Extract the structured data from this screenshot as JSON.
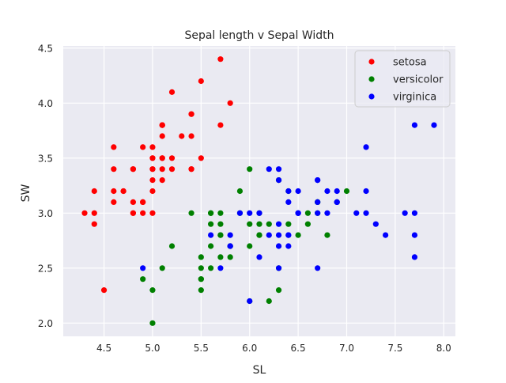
{
  "chart_data": {
    "type": "scatter",
    "title": "Sepal length v Sepal Width",
    "xlabel": "SL",
    "ylabel": "SW",
    "xlim": [
      4.08,
      8.12
    ],
    "ylim": [
      1.88,
      4.52
    ],
    "xticks": [
      4.5,
      5.0,
      5.5,
      6.0,
      6.5,
      7.0,
      7.5,
      8.0
    ],
    "xtick_labels": [
      "4.5",
      "5.0",
      "5.5",
      "6.0",
      "6.5",
      "7.0",
      "7.5",
      "8.0"
    ],
    "yticks": [
      2.0,
      2.5,
      3.0,
      3.5,
      4.0,
      4.5
    ],
    "ytick_labels": [
      "2.0",
      "2.5",
      "3.0",
      "3.5",
      "4.0",
      "4.5"
    ],
    "grid": true,
    "legend_position": "top-right",
    "series": [
      {
        "name": "setosa",
        "color": "#ff0000",
        "points": [
          [
            5.1,
            3.5
          ],
          [
            4.9,
            3.0
          ],
          [
            4.7,
            3.2
          ],
          [
            4.6,
            3.1
          ],
          [
            5.0,
            3.6
          ],
          [
            5.4,
            3.9
          ],
          [
            4.6,
            3.4
          ],
          [
            5.0,
            3.4
          ],
          [
            4.4,
            2.9
          ],
          [
            4.9,
            3.1
          ],
          [
            5.4,
            3.7
          ],
          [
            4.8,
            3.4
          ],
          [
            4.8,
            3.0
          ],
          [
            4.3,
            3.0
          ],
          [
            5.8,
            4.0
          ],
          [
            5.7,
            4.4
          ],
          [
            5.4,
            3.9
          ],
          [
            5.1,
            3.5
          ],
          [
            5.7,
            3.8
          ],
          [
            5.1,
            3.8
          ],
          [
            5.4,
            3.4
          ],
          [
            5.1,
            3.7
          ],
          [
            4.6,
            3.6
          ],
          [
            5.1,
            3.3
          ],
          [
            4.8,
            3.4
          ],
          [
            5.0,
            3.0
          ],
          [
            5.0,
            3.4
          ],
          [
            5.2,
            3.5
          ],
          [
            5.2,
            3.4
          ],
          [
            4.7,
            3.2
          ],
          [
            4.8,
            3.1
          ],
          [
            5.4,
            3.4
          ],
          [
            5.2,
            4.1
          ],
          [
            5.5,
            4.2
          ],
          [
            4.9,
            3.1
          ],
          [
            5.0,
            3.2
          ],
          [
            5.5,
            3.5
          ],
          [
            4.9,
            3.6
          ],
          [
            4.4,
            3.0
          ],
          [
            5.1,
            3.4
          ],
          [
            5.0,
            3.5
          ],
          [
            4.5,
            2.3
          ],
          [
            4.4,
            3.2
          ],
          [
            5.0,
            3.5
          ],
          [
            5.1,
            3.8
          ],
          [
            4.8,
            3.0
          ],
          [
            5.1,
            3.8
          ],
          [
            4.6,
            3.2
          ],
          [
            5.3,
            3.7
          ],
          [
            5.0,
            3.3
          ]
        ]
      },
      {
        "name": "versicolor",
        "color": "#008000",
        "points": [
          [
            7.0,
            3.2
          ],
          [
            6.4,
            3.2
          ],
          [
            6.9,
            3.1
          ],
          [
            5.5,
            2.3
          ],
          [
            6.5,
            2.8
          ],
          [
            5.7,
            2.8
          ],
          [
            6.3,
            3.3
          ],
          [
            4.9,
            2.4
          ],
          [
            6.6,
            2.9
          ],
          [
            5.2,
            2.7
          ],
          [
            5.0,
            2.0
          ],
          [
            5.9,
            3.0
          ],
          [
            6.0,
            2.2
          ],
          [
            6.1,
            2.9
          ],
          [
            5.6,
            2.9
          ],
          [
            6.7,
            3.1
          ],
          [
            5.6,
            3.0
          ],
          [
            5.8,
            2.7
          ],
          [
            6.2,
            2.2
          ],
          [
            5.6,
            2.5
          ],
          [
            5.9,
            3.2
          ],
          [
            6.1,
            2.8
          ],
          [
            6.3,
            2.5
          ],
          [
            6.1,
            2.8
          ],
          [
            6.4,
            2.9
          ],
          [
            6.6,
            3.0
          ],
          [
            6.8,
            2.8
          ],
          [
            6.7,
            3.0
          ],
          [
            6.0,
            2.9
          ],
          [
            5.7,
            2.6
          ],
          [
            5.5,
            2.4
          ],
          [
            5.5,
            2.4
          ],
          [
            5.8,
            2.7
          ],
          [
            6.0,
            2.7
          ],
          [
            5.4,
            3.0
          ],
          [
            6.0,
            3.4
          ],
          [
            6.7,
            3.1
          ],
          [
            6.3,
            2.3
          ],
          [
            5.6,
            3.0
          ],
          [
            5.5,
            2.5
          ],
          [
            5.5,
            2.6
          ],
          [
            6.1,
            3.0
          ],
          [
            5.8,
            2.6
          ],
          [
            5.0,
            2.3
          ],
          [
            5.6,
            2.7
          ],
          [
            5.7,
            3.0
          ],
          [
            5.7,
            2.9
          ],
          [
            6.2,
            2.9
          ],
          [
            5.1,
            2.5
          ],
          [
            5.7,
            2.8
          ]
        ]
      },
      {
        "name": "virginica",
        "color": "#0000ff",
        "points": [
          [
            6.3,
            3.3
          ],
          [
            5.8,
            2.7
          ],
          [
            7.1,
            3.0
          ],
          [
            6.3,
            2.9
          ],
          [
            6.5,
            3.0
          ],
          [
            7.6,
            3.0
          ],
          [
            4.9,
            2.5
          ],
          [
            7.3,
            2.9
          ],
          [
            6.7,
            2.5
          ],
          [
            7.2,
            3.6
          ],
          [
            6.5,
            3.2
          ],
          [
            6.4,
            2.7
          ],
          [
            6.8,
            3.0
          ],
          [
            5.7,
            2.5
          ],
          [
            5.8,
            2.8
          ],
          [
            6.4,
            3.2
          ],
          [
            6.5,
            3.0
          ],
          [
            7.7,
            3.8
          ],
          [
            7.7,
            2.6
          ],
          [
            6.0,
            2.2
          ],
          [
            6.9,
            3.2
          ],
          [
            5.6,
            2.8
          ],
          [
            7.7,
            2.8
          ],
          [
            6.3,
            2.7
          ],
          [
            6.7,
            3.3
          ],
          [
            7.2,
            3.2
          ],
          [
            6.2,
            2.8
          ],
          [
            6.1,
            3.0
          ],
          [
            6.4,
            2.8
          ],
          [
            7.2,
            3.0
          ],
          [
            7.4,
            2.8
          ],
          [
            7.9,
            3.8
          ],
          [
            6.4,
            2.8
          ],
          [
            6.3,
            2.8
          ],
          [
            6.1,
            2.6
          ],
          [
            7.7,
            3.0
          ],
          [
            6.3,
            3.4
          ],
          [
            6.4,
            3.1
          ],
          [
            6.0,
            3.0
          ],
          [
            6.9,
            3.1
          ],
          [
            6.7,
            3.1
          ],
          [
            6.9,
            3.1
          ],
          [
            5.8,
            2.7
          ],
          [
            6.8,
            3.2
          ],
          [
            6.7,
            3.3
          ],
          [
            6.7,
            3.0
          ],
          [
            6.3,
            2.5
          ],
          [
            6.5,
            3.0
          ],
          [
            6.2,
            3.4
          ],
          [
            5.9,
            3.0
          ]
        ]
      }
    ]
  }
}
